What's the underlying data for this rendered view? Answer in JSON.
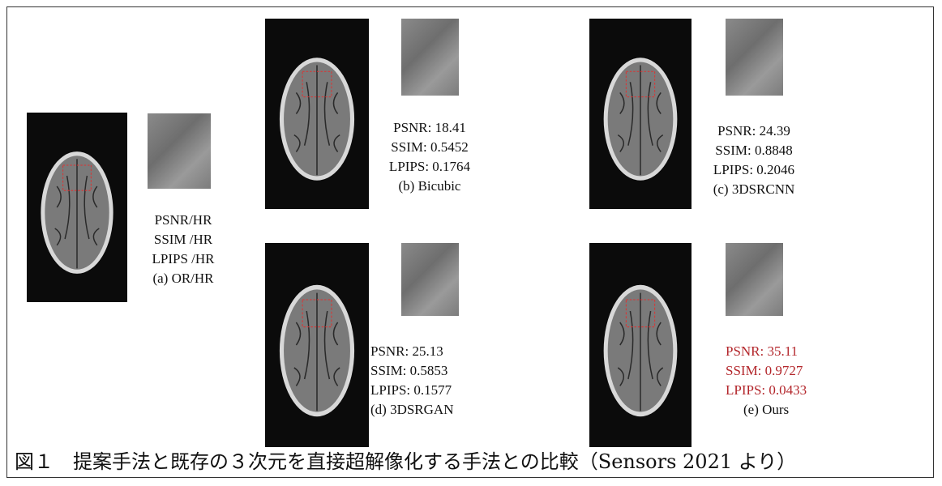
{
  "figure": {
    "panels": [
      {
        "lines": [
          "PSNR/HR",
          "SSIM /HR",
          "LPIPS /HR"
        ],
        "caption": "(a) OR/HR"
      },
      {
        "lines": [
          "PSNR: 18.41",
          "SSIM: 0.5452",
          "LPIPS: 0.1764"
        ],
        "caption": "(b) Bicubic"
      },
      {
        "lines": [
          "PSNR: 24.39",
          "SSIM: 0.8848",
          "LPIPS: 0.2046"
        ],
        "caption": "(c) 3DSRCNN"
      },
      {
        "lines": [
          "PSNR: 25.13",
          "SSIM: 0.5853",
          "LPIPS: 0.1577"
        ],
        "caption": "(d) 3DSRGAN"
      },
      {
        "lines": [
          "PSNR: 35.11",
          "SSIM: 0.9727",
          "LPIPS: 0.0433"
        ],
        "caption": "(e) Ours"
      }
    ],
    "caption": "図１　提案手法と既存の３次元を直接超解像化する手法との比較（Sensors 2021 より）"
  }
}
